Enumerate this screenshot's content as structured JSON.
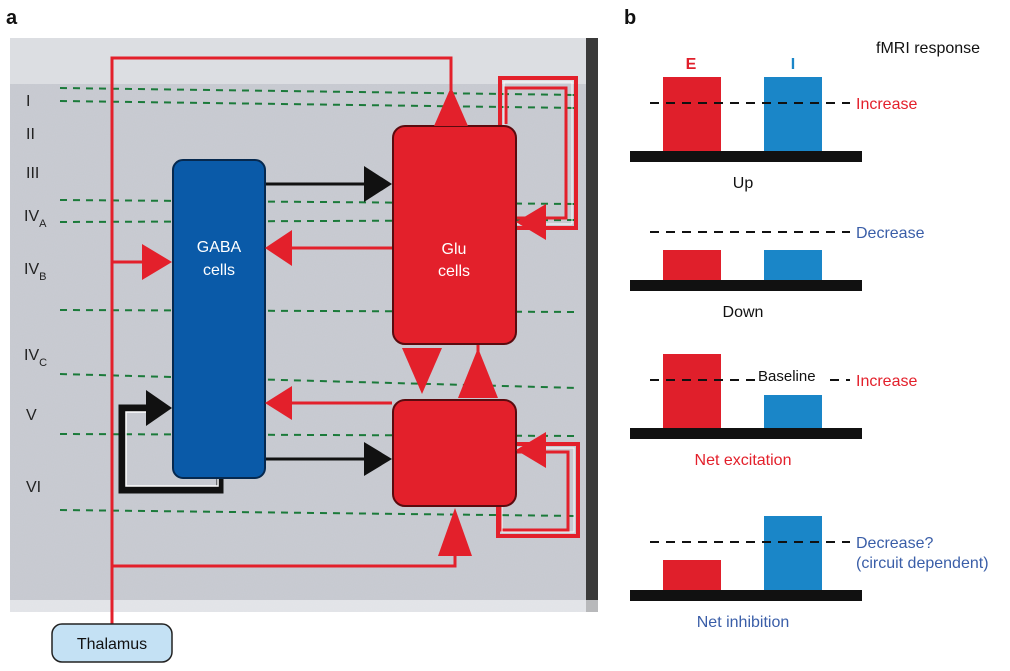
{
  "panel_a": {
    "letter": "a",
    "layers": [
      "I",
      "II",
      "III",
      "IV",
      "IV",
      "IV",
      "V",
      "VI"
    ],
    "layer_subscripts": {
      "iv_a": "A",
      "iv_b": "B",
      "iv_c": "C"
    },
    "gaba_box": {
      "line1": "GABA",
      "line2": "cells"
    },
    "glu_box": {
      "line1": "Glu",
      "line2": "cells"
    },
    "thalamus": "Thalamus",
    "colors": {
      "excitatory": "#e3202b",
      "inhibitory": "#0a5aa8",
      "layer_lines": "#1b7a3a"
    }
  },
  "panel_b": {
    "letter": "b",
    "header": "fMRI response",
    "legend_e": "E",
    "legend_i": "I",
    "colors": {
      "e": "#e01f2b",
      "i": "#1a86c8",
      "increase": "#e3202b",
      "decrease": "#3a5ea8"
    },
    "scenarios": [
      {
        "caption": "Up",
        "response": "Increase",
        "response2": "",
        "e_level": 1.0,
        "i_level": 1.0
      },
      {
        "caption": "Down",
        "response": "Decrease",
        "response2": "",
        "e_level": 0.4,
        "i_level": 0.4
      },
      {
        "caption": "Net excitation",
        "response": "Increase",
        "response2": "",
        "baseline": "Baseline",
        "e_level": 1.0,
        "i_level": 0.45
      },
      {
        "caption": "Net inhibition",
        "response": "Decrease?",
        "response2": "(circuit dependent)",
        "e_level": 0.4,
        "i_level": 1.0
      }
    ]
  }
}
